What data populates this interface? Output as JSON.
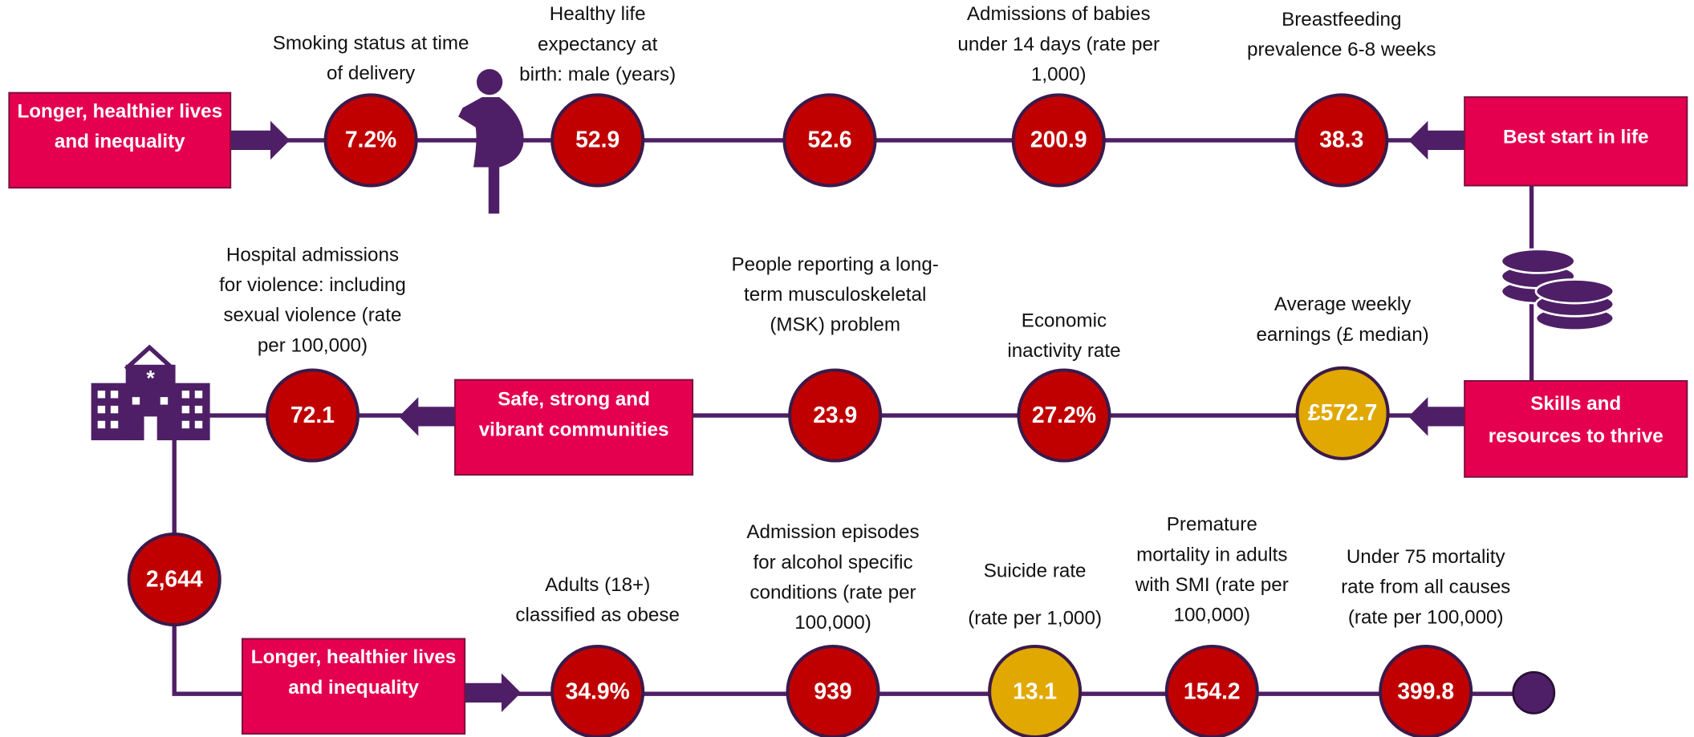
{
  "boxes": [
    {
      "label": [
        "Longer, healthier lives",
        "and inequality"
      ]
    },
    {
      "label": [
        "Best start in life"
      ]
    },
    {
      "label": [
        "Skills and",
        "resources to thrive"
      ]
    },
    {
      "label": [
        "Safe, strong and",
        "vibrant communities"
      ]
    },
    {
      "label": [
        "Longer, healthier lives",
        "and inequality"
      ]
    }
  ],
  "indicators": [
    {
      "label": [
        "Smoking status at time",
        "of delivery"
      ],
      "value": "7.2%",
      "color": "#c00000"
    },
    {
      "label": [
        "Healthy life",
        "expectancy at",
        "birth: male (years)"
      ],
      "value": "52.9",
      "color": "#c00000"
    },
    {
      "value": "52.6",
      "color": "#c00000"
    },
    {
      "label": [
        "Admissions of babies",
        "under 14 days (rate per",
        "1,000)"
      ],
      "value": "200.9",
      "color": "#c00000"
    },
    {
      "label": [
        "Breastfeeding",
        "prevalence 6-8 weeks"
      ],
      "value": "38.3",
      "color": "#c00000"
    },
    {
      "label": [
        "Average weekly",
        "earnings (£ median)"
      ],
      "value": "£572.7",
      "color": "#e0a800"
    },
    {
      "label": [
        "Economic",
        "inactivity rate"
      ],
      "value": "27.2%",
      "color": "#c00000"
    },
    {
      "label": [
        "People reporting a long-",
        "term musculoskeletal",
        "(MSK) problem"
      ],
      "value": "23.9",
      "color": "#c00000"
    },
    {
      "label": [
        "Hospital admissions",
        "for violence: including",
        "sexual violence (rate",
        "per 100,000)"
      ],
      "value": "72.1",
      "color": "#c00000"
    },
    {
      "value": "2,644",
      "color": "#c00000"
    },
    {
      "label": [
        "Adults (18+)",
        "classified as obese"
      ],
      "value": "34.9%",
      "color": "#c00000"
    },
    {
      "label": [
        "Admission episodes",
        "for alcohol specific",
        "conditions (rate per",
        "100,000)"
      ],
      "value": "939",
      "color": "#c00000"
    },
    {
      "label": [
        "Suicide rate",
        "(rate per 1,000)"
      ],
      "value": "13.1",
      "color": "#e0a800"
    },
    {
      "label": [
        "Premature",
        "mortality in adults",
        "with SMI (rate per",
        "100,000)"
      ],
      "value": "154.2",
      "color": "#c00000"
    },
    {
      "label": [
        "Under 75 mortality",
        "rate from all causes",
        "(rate per 100,000)"
      ],
      "value": "399.8",
      "color": "#c00000"
    }
  ]
}
